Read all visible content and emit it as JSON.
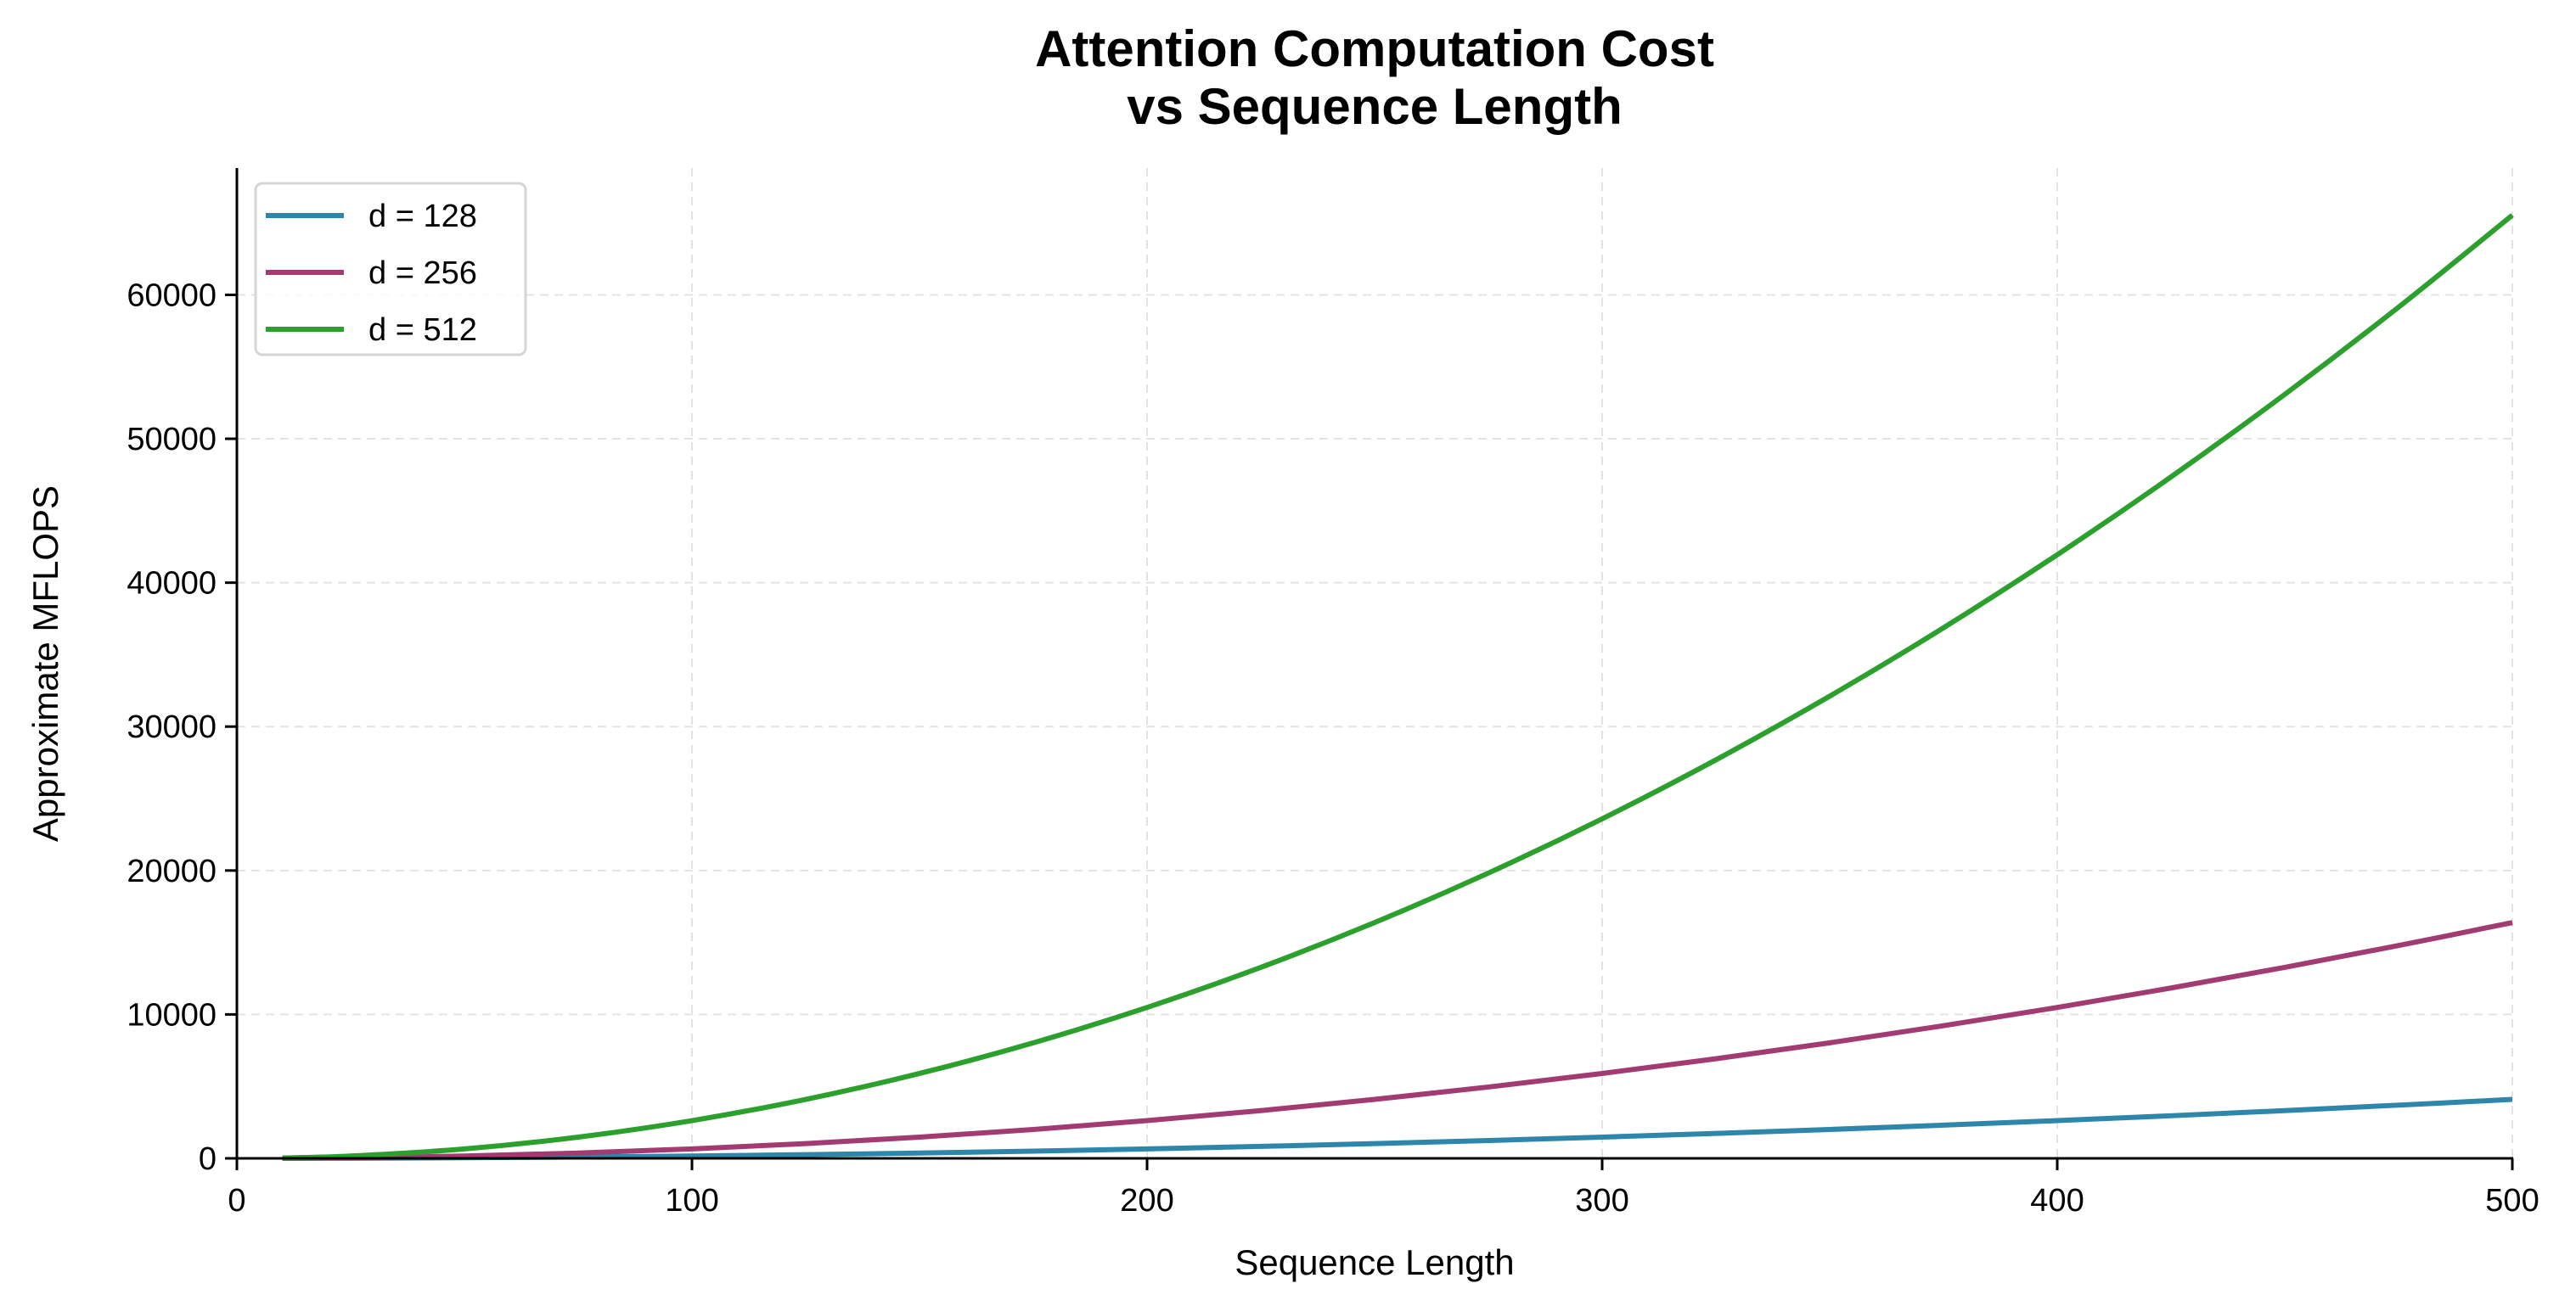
{
  "chart_data": {
    "type": "line",
    "title": [
      "Attention Computation Cost",
      "vs Sequence Length"
    ],
    "xlabel": "Sequence Length",
    "ylabel": "Approximate MFLOPS",
    "xlim": [
      0,
      500
    ],
    "ylim": [
      0,
      68813
    ],
    "xticks": [
      0,
      100,
      200,
      300,
      400,
      500
    ],
    "yticks": [
      0,
      10000,
      20000,
      30000,
      40000,
      50000,
      60000
    ],
    "grid": true,
    "legend_position": "top-left",
    "x": [
      10,
      25,
      50,
      75,
      100,
      125,
      150,
      175,
      200,
      225,
      250,
      275,
      300,
      325,
      350,
      375,
      400,
      425,
      450,
      475,
      500
    ],
    "series": [
      {
        "name": "d = 128",
        "color": "#2E86AB",
        "values": [
          1.6,
          10.2,
          41.0,
          92.2,
          163.8,
          256.0,
          368.6,
          501.8,
          655.4,
          829.4,
          1024.0,
          1239.0,
          1474.6,
          1730.6,
          2007.0,
          2304.0,
          2621.4,
          2959.4,
          3317.8,
          3696.6,
          4096.0
        ]
      },
      {
        "name": "d = 256",
        "color": "#A23B72",
        "values": [
          6.6,
          41.0,
          163.8,
          368.6,
          655.4,
          1024.0,
          1474.6,
          2007.0,
          2621.4,
          3317.8,
          4096.0,
          4956.2,
          5898.2,
          6922.2,
          8028.2,
          9216.0,
          10485.8,
          11837.4,
          13271.0,
          14786.6,
          16384.0
        ]
      },
      {
        "name": "d = 512",
        "color": "#2CA02C",
        "values": [
          26.2,
          163.8,
          655.4,
          1474.6,
          2621.4,
          4096.0,
          5898.2,
          8028.2,
          10485.8,
          13271.0,
          16384.0,
          19824.6,
          23593.0,
          27688.9,
          32112.6,
          36864.0,
          41943.0,
          47349.8,
          53084.2,
          59146.2,
          65536.0
        ]
      }
    ]
  }
}
